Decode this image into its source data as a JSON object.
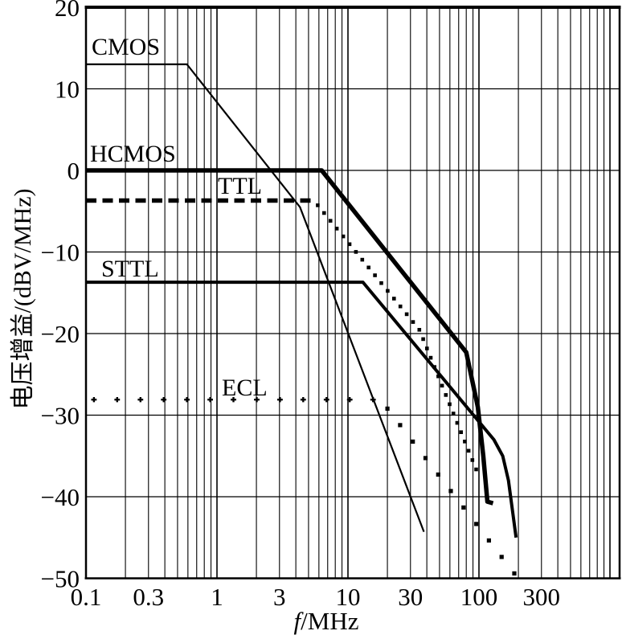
{
  "figure": {
    "background": "#ffffff",
    "ink_color": "#000000",
    "description": "Voltage gain vs frequency roll-off curves for five logic families on a log-frequency grid"
  },
  "chart_data": {
    "type": "line",
    "title": "",
    "x_axis": {
      "label": "f/MHz",
      "label_italic_prefix": "f",
      "label_rest": "/MHz",
      "scale": "log",
      "min": 0.1,
      "max": 1180,
      "tick_values": [
        0.1,
        0.3,
        1,
        3,
        10,
        30,
        100,
        300
      ],
      "tick_labels": [
        "0.1",
        "0.3",
        "1",
        "3",
        "10",
        "30",
        "100",
        "300"
      ],
      "grid": "log minor lines 2-9 each decade, decades 0.1 to 1000"
    },
    "y_axis": {
      "label": "电压增益/(dBV/MHz)",
      "scale": "linear",
      "min": -50,
      "max": 20,
      "tick_step": 10,
      "tick_values": [
        20,
        10,
        0,
        -10,
        -20,
        -30,
        -40,
        -50
      ],
      "tick_labels": [
        "20",
        "10",
        "0",
        "−10",
        "−20",
        "−30",
        "−40",
        "−50"
      ],
      "grid": "horizontal line every 10 dB"
    },
    "legend_position": "labels drawn beside each curve inside plot",
    "series": [
      {
        "name": "CMOS",
        "style": "solid-thin",
        "points_f_gain": [
          [
            0.1,
            13
          ],
          [
            0.59,
            13
          ],
          [
            4.3,
            -4.5
          ],
          [
            38,
            -44.3
          ]
        ],
        "note": "flat 13 dB, then ~20 dB/dec, steepening to ~40 dB/dec"
      },
      {
        "name": "HCMOS",
        "style": "solid-thick",
        "points_f_gain": [
          [
            0.1,
            0
          ],
          [
            6.3,
            0
          ],
          [
            80,
            -22.3
          ],
          [
            98,
            -29
          ],
          [
            108,
            -35
          ],
          [
            116,
            -40.6
          ],
          [
            128,
            -40.8
          ]
        ],
        "note": "flat 0 dB to ~6 MHz, ~20 dB/dec, then steep cutoff near 100-130 MHz"
      },
      {
        "name": "TTL",
        "style": "dashed-flat-then-dotted-slope",
        "dashed_points_f_gain": [
          [
            0.1,
            -3.7
          ],
          [
            5.5,
            -3.7
          ]
        ],
        "dotted_points_f_gain": [
          [
            5.5,
            -3.7
          ],
          [
            35,
            -19.5
          ],
          [
            100,
            -37.5
          ]
        ],
        "note": "flat -3.7 dB dashed, dotted fall ~20 dB/dec then ~40 dB/dec"
      },
      {
        "name": "STTL",
        "style": "solid-medium",
        "points_f_gain": [
          [
            0.1,
            -13.7
          ],
          [
            13,
            -13.7
          ],
          [
            130,
            -33
          ],
          [
            152,
            -35
          ],
          [
            168,
            -38
          ],
          [
            192,
            -45
          ]
        ],
        "note": "flat -13.7 dB to ~13 MHz, ~20 dB/dec, steep cutoff near 150-190 MHz"
      },
      {
        "name": "ECL",
        "style": "plus-markers-flat-then-square-dots-slope",
        "flat_markers": {
          "gain": -28.1,
          "f_start": 0.115,
          "f_ratio": 1.505,
          "count": 13
        },
        "falling_dots": {
          "f_start": 20,
          "f_ratio": 1.25,
          "gain_start": -29.2,
          "gain_step": -2.02,
          "count": 11
        },
        "note": "flat -28 dB markers to ~15 MHz, dotted fall ~20 dB/dec to -49 dB at ~190 MHz"
      }
    ]
  }
}
